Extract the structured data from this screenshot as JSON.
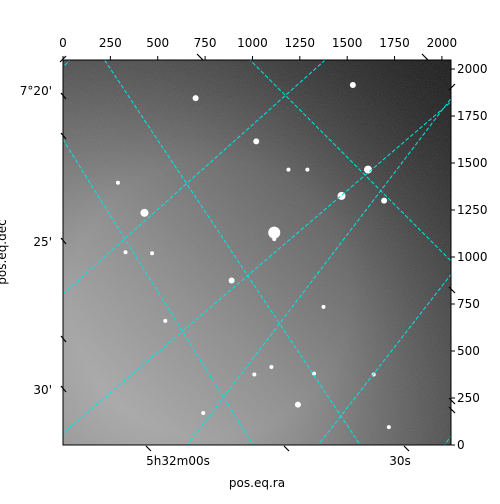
{
  "chart_data": {
    "type": "image",
    "title": "",
    "xlabel": "pos.eq.ra",
    "ylabel": "pos.eq.dec",
    "pixel_xlim": [
      0,
      2048
    ],
    "pixel_ylim": [
      0,
      2048
    ],
    "pixel_xticks": [
      0,
      250,
      500,
      750,
      1000,
      1250,
      1500,
      1750,
      2000
    ],
    "pixel_yticks": [
      0,
      250,
      500,
      750,
      1000,
      1250,
      1500,
      1750,
      2000
    ],
    "ra_ticks": [
      "5h32m00s",
      "30s"
    ],
    "dec_ticks": [
      "7°20'",
      "25'",
      "30'"
    ],
    "grid": true,
    "grid_color": "#00e5e5",
    "colormap": "gray",
    "stars": [
      {
        "x": 1115,
        "y": 1130,
        "r": 6
      },
      {
        "x": 430,
        "y": 1235,
        "r": 4
      },
      {
        "x": 700,
        "y": 1845,
        "r": 3
      },
      {
        "x": 890,
        "y": 875,
        "r": 3
      },
      {
        "x": 1610,
        "y": 1465,
        "r": 4
      },
      {
        "x": 1470,
        "y": 1325,
        "r": 4
      },
      {
        "x": 1695,
        "y": 1300,
        "r": 3
      },
      {
        "x": 1530,
        "y": 1915,
        "r": 3
      },
      {
        "x": 1020,
        "y": 1615,
        "r": 3
      },
      {
        "x": 470,
        "y": 1020,
        "r": 2
      },
      {
        "x": 1240,
        "y": 215,
        "r": 3
      },
      {
        "x": 1375,
        "y": 735,
        "r": 2
      },
      {
        "x": 1190,
        "y": 1465,
        "r": 2
      },
      {
        "x": 1290,
        "y": 1465,
        "r": 2
      },
      {
        "x": 1115,
        "y": 1095,
        "r": 2
      },
      {
        "x": 330,
        "y": 1025,
        "r": 2
      },
      {
        "x": 290,
        "y": 1395,
        "r": 2
      },
      {
        "x": 1010,
        "y": 375,
        "r": 2
      },
      {
        "x": 1325,
        "y": 380,
        "r": 2
      },
      {
        "x": 1640,
        "y": 375,
        "r": 2
      },
      {
        "x": 1100,
        "y": 415,
        "r": 2
      },
      {
        "x": 540,
        "y": 660,
        "r": 2
      },
      {
        "x": 1720,
        "y": 95,
        "r": 2
      },
      {
        "x": 740,
        "y": 170,
        "r": 2
      }
    ]
  }
}
